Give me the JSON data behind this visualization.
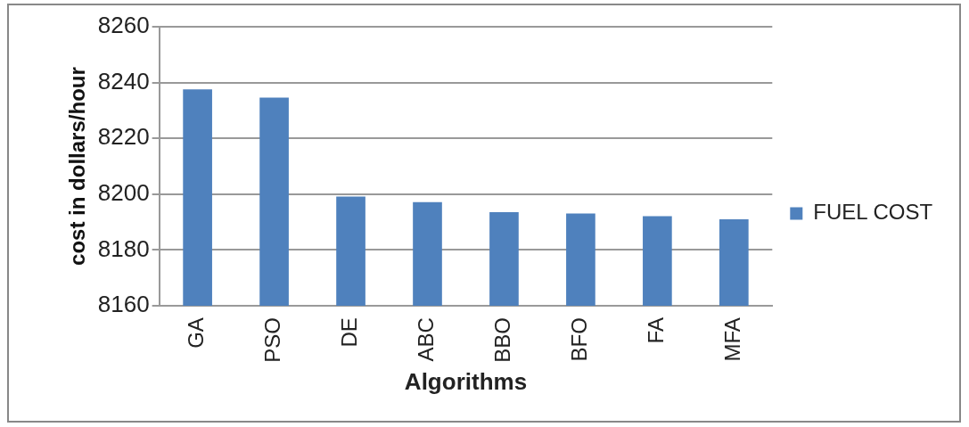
{
  "chart_data": {
    "type": "bar",
    "xlabel": "Algorithms",
    "ylabel": "cost in dollars/hour",
    "categories": [
      "GA",
      "PSO",
      "DE",
      "ABC",
      "BBO",
      "BFO",
      "FA",
      "MFA"
    ],
    "series": [
      {
        "name": "FUEL COST",
        "color": "#4f81bd",
        "values": [
          8237.6,
          8234.6,
          8199.2,
          8197.2,
          8193.6,
          8193.1,
          8192.1,
          8191.0
        ]
      }
    ],
    "ylim": [
      8160,
      8260
    ],
    "yticks": [
      8160,
      8180,
      8200,
      8220,
      8240,
      8260
    ],
    "grid": "y",
    "legend": "right"
  }
}
